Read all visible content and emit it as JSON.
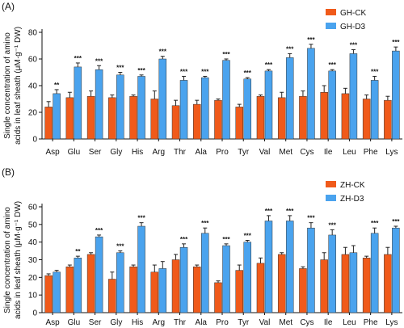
{
  "chart_data": [
    {
      "type": "bar",
      "panel_label": "(A)",
      "ylabel_line1": "Single concentration of amino",
      "ylabel_line2": "acids in leaf sheath (μM·g⁻¹ DW)",
      "ylim": [
        0,
        80
      ],
      "yticks": [
        0,
        20,
        40,
        60,
        80
      ],
      "categories": [
        "Asp",
        "Glu",
        "Ser",
        "Gly",
        "His",
        "Arg",
        "Thr",
        "Ala",
        "Pro",
        "Tyr",
        "Val",
        "Met",
        "Cys",
        "Ile",
        "Leu",
        "Phe",
        "Lys"
      ],
      "legend_position": "top-right",
      "series": [
        {
          "name": "GH-CK",
          "color": "#f05a1a",
          "values": [
            24,
            31,
            32,
            31,
            32,
            30,
            25,
            26,
            29,
            24,
            32,
            31,
            32,
            35,
            34,
            30,
            29
          ],
          "errors": [
            4,
            4,
            4,
            2,
            1,
            6,
            4,
            3,
            1,
            2,
            1,
            4,
            4,
            5,
            4,
            3,
            3
          ],
          "sig": [
            "",
            "",
            "",
            "",
            "",
            "",
            "",
            "",
            "",
            "",
            "",
            "",
            "",
            "",
            "",
            "",
            ""
          ]
        },
        {
          "name": "GH-D3",
          "color": "#4aa3ee",
          "values": [
            34,
            54,
            52,
            48,
            47,
            60,
            44,
            46,
            59,
            45,
            51,
            61,
            68,
            51,
            64,
            44,
            66
          ],
          "errors": [
            3,
            3,
            3,
            2,
            1,
            2,
            3,
            1,
            1,
            1,
            1,
            3,
            3,
            1,
            3,
            3,
            3
          ],
          "sig": [
            "**",
            "***",
            "***",
            "***",
            "***",
            "***",
            "***",
            "***",
            "***",
            "***",
            "***",
            "***",
            "***",
            "***",
            "***",
            "***",
            "***"
          ]
        }
      ]
    },
    {
      "type": "bar",
      "panel_label": "(B)",
      "ylabel_line1": "Single concentration of amino",
      "ylabel_line2": "acids in leaf sheath (μM·g⁻¹ DW)",
      "ylim": [
        0,
        60
      ],
      "yticks": [
        0,
        10,
        20,
        30,
        40,
        50,
        60
      ],
      "categories": [
        "Asp",
        "Glu",
        "Ser",
        "Gly",
        "His",
        "Arg",
        "Thr",
        "Ala",
        "Pro",
        "Tyr",
        "Val",
        "Met",
        "Cys",
        "Ile",
        "Leu",
        "Phe",
        "Lys"
      ],
      "legend_position": "top-right",
      "series": [
        {
          "name": "ZH-CK",
          "color": "#f05a1a",
          "values": [
            21,
            26,
            33,
            19,
            26,
            23,
            30,
            26,
            17,
            24,
            28,
            33,
            25,
            30,
            33,
            31,
            33
          ],
          "errors": [
            1,
            1,
            1,
            4,
            1,
            4,
            3,
            1,
            1,
            3,
            3,
            1,
            1,
            4,
            4,
            1,
            4
          ],
          "sig": [
            "",
            "",
            "",
            "",
            "",
            "",
            "",
            "",
            "",
            "",
            "",
            "",
            "",
            "",
            "",
            "",
            ""
          ]
        },
        {
          "name": "ZH-D3",
          "color": "#4aa3ee",
          "values": [
            23,
            31,
            43,
            34,
            49,
            25,
            37,
            45,
            38,
            40,
            52,
            52,
            48,
            44,
            34,
            45,
            48
          ],
          "errors": [
            1,
            1,
            1,
            1,
            2,
            4,
            2,
            3,
            1,
            1,
            3,
            3,
            3,
            3,
            4,
            3,
            1
          ],
          "sig": [
            "",
            "**",
            "***",
            "***",
            "***",
            "",
            "***",
            "***",
            "***",
            "***",
            "***",
            "***",
            "***",
            "***",
            "",
            "***",
            "***"
          ]
        }
      ]
    }
  ]
}
